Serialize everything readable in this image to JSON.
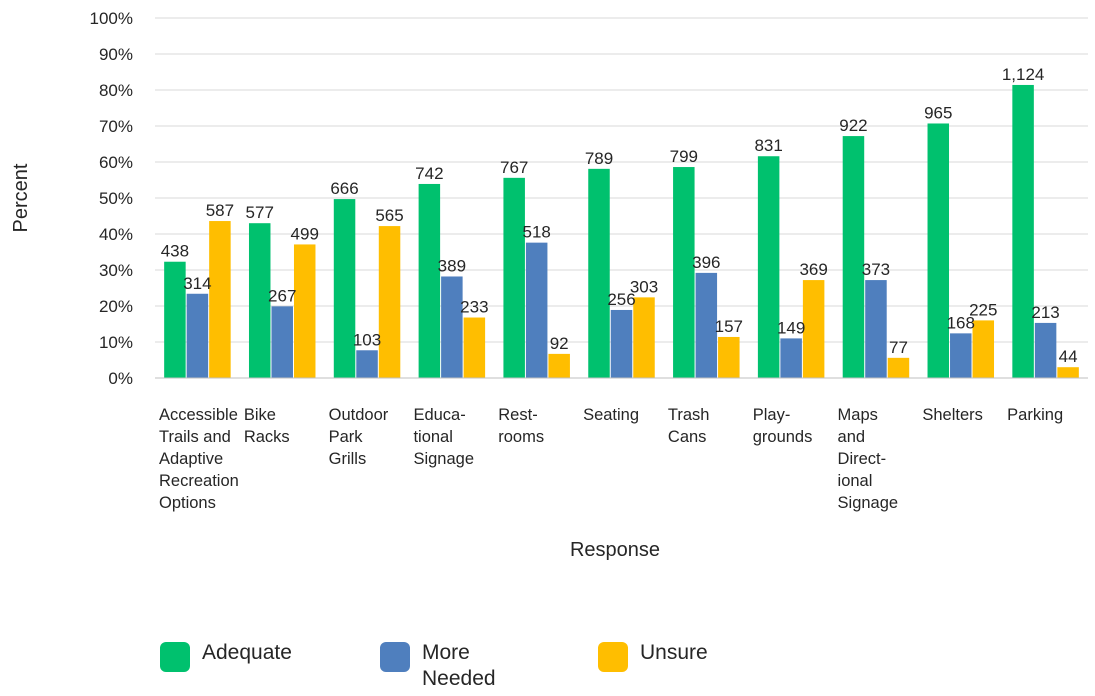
{
  "chart_data": {
    "type": "bar",
    "title": "",
    "xlabel": "Response",
    "ylabel": "Percent",
    "ylim": [
      0,
      100
    ],
    "y_ticks": [
      "0%",
      "10%",
      "20%",
      "30%",
      "40%",
      "50%",
      "60%",
      "70%",
      "80%",
      "90%",
      "100%"
    ],
    "grid": true,
    "legend_position": "bottom",
    "categories": [
      [
        "Accessible",
        "Trails and",
        "Adaptive",
        "Recreation",
        "Options"
      ],
      [
        "Bike",
        "Racks"
      ],
      [
        "Outdoor",
        "Park",
        "Grills"
      ],
      [
        "Educa-",
        "tional",
        "Signage"
      ],
      [
        "Rest-",
        "rooms"
      ],
      [
        "Seating"
      ],
      [
        "Trash",
        "Cans"
      ],
      [
        "Play-",
        "grounds"
      ],
      [
        "Maps",
        "and",
        "Direct-",
        "ional",
        "Signage"
      ],
      [
        "Shelters"
      ],
      [
        "Parking"
      ]
    ],
    "series": [
      {
        "name": "Adequate",
        "color": "#00c16e",
        "values": [
          32.3,
          43.0,
          49.7,
          53.9,
          55.6,
          58.1,
          58.6,
          61.6,
          67.2,
          70.7,
          81.4
        ],
        "labels": [
          "438",
          "577",
          "666",
          "742",
          "767",
          "789",
          "799",
          "831",
          "922",
          "965",
          "1,124"
        ]
      },
      {
        "name": "More Needed",
        "color": "#4f7fbe",
        "values": [
          23.4,
          19.9,
          7.7,
          28.2,
          37.6,
          18.9,
          29.2,
          11.0,
          27.2,
          12.4,
          15.3
        ],
        "labels": [
          "314",
          "267",
          "103",
          "389",
          "518",
          "256",
          "396",
          "149",
          "373",
          "168",
          "213"
        ]
      },
      {
        "name": "Unsure",
        "color": "#ffbe00",
        "values": [
          43.6,
          37.1,
          42.2,
          16.8,
          6.7,
          22.4,
          11.4,
          27.2,
          5.6,
          16.0,
          3.0
        ],
        "labels": [
          "587",
          "499",
          "565",
          "233",
          "92",
          "303",
          "157",
          "369",
          "77",
          "225",
          "44"
        ]
      }
    ]
  },
  "legend": {
    "items": [
      {
        "label_lines": [
          "Adequate"
        ],
        "color": "#00c16e"
      },
      {
        "label_lines": [
          "More",
          "Needed"
        ],
        "color": "#4f7fbe"
      },
      {
        "label_lines": [
          "Unsure"
        ],
        "color": "#ffbe00"
      }
    ]
  }
}
